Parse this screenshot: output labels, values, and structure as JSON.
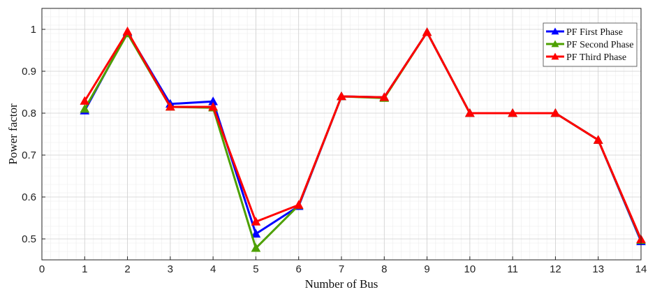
{
  "chart_data": {
    "type": "line",
    "title": "",
    "xlabel": "Number of Bus",
    "ylabel": "Power factor",
    "xlim": [
      0,
      14
    ],
    "ylim": [
      0.45,
      1.05
    ],
    "x_ticks": [
      0,
      1,
      2,
      3,
      4,
      5,
      6,
      7,
      8,
      9,
      10,
      11,
      12,
      13,
      14
    ],
    "y_ticks": [
      0.5,
      0.6,
      0.7,
      0.8,
      0.9,
      1
    ],
    "grid": true,
    "minor_grid": true,
    "legend_position": "top-right",
    "x": [
      1,
      2,
      3,
      4,
      5,
      6,
      7,
      8,
      9,
      10,
      11,
      12,
      13,
      14
    ],
    "series": [
      {
        "name": "PF First Phase",
        "color": "#0000ff",
        "marker": "triangle",
        "values": [
          0.806,
          0.993,
          0.822,
          0.828,
          0.512,
          0.578,
          0.84,
          0.838,
          0.993,
          0.8,
          0.8,
          0.8,
          0.736,
          0.494
        ]
      },
      {
        "name": "PF Second Phase",
        "color": "#4da000",
        "marker": "triangle",
        "values": [
          0.81,
          0.99,
          0.815,
          0.813,
          0.478,
          0.58,
          0.84,
          0.836,
          0.993,
          0.8,
          0.8,
          0.8,
          0.736,
          0.497
        ]
      },
      {
        "name": "PF Third Phase",
        "color": "#ff0000",
        "marker": "triangle",
        "values": [
          0.829,
          0.995,
          0.815,
          0.815,
          0.541,
          0.581,
          0.84,
          0.838,
          0.993,
          0.8,
          0.8,
          0.8,
          0.736,
          0.499
        ]
      }
    ]
  }
}
